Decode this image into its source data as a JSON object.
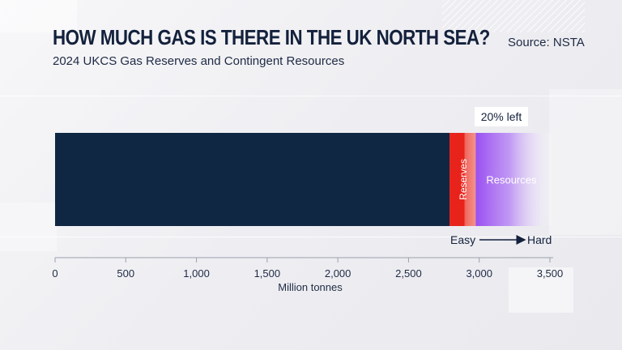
{
  "header": {
    "title": "How much gas is there in the UK North Sea?",
    "subtitle": "2024 UKCS Gas Reserves and Contingent Resources",
    "source": "Source: NSTA"
  },
  "chart_data": {
    "type": "bar",
    "orientation": "horizontal-stacked",
    "xlabel": "Million tonnes",
    "xlim": [
      0,
      3500
    ],
    "ticks": [
      0,
      500,
      1000,
      1500,
      2000,
      2500,
      3000,
      3500
    ],
    "tick_labels": [
      "0",
      "500",
      "1,000",
      "1,500",
      "2,000",
      "2,500",
      "3,000",
      "3,500"
    ],
    "segments": [
      {
        "key": "used",
        "label": "",
        "start": 0,
        "end": 2790,
        "color": "#0f2742"
      },
      {
        "key": "reserves",
        "label": "Reserves",
        "start": 2790,
        "end": 2975,
        "color": "#e8231b"
      },
      {
        "key": "resources",
        "label": "Resources",
        "start": 2975,
        "end": 3510,
        "color": "#9a4ff0"
      }
    ],
    "annotations": {
      "callout": "20% left",
      "scale_start": "Easy",
      "scale_end": "Hard"
    },
    "grid": false
  }
}
